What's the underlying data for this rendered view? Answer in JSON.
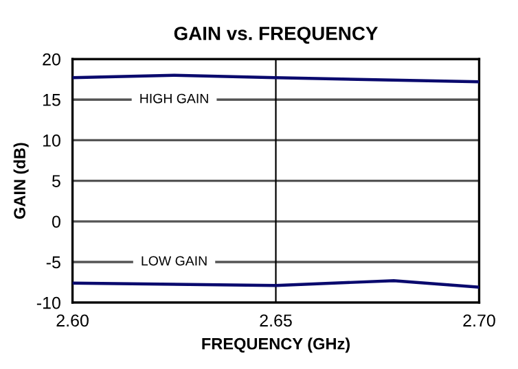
{
  "chart_data": {
    "type": "line",
    "title": "GAIN vs. FREQUENCY",
    "xlabel": "FREQUENCY (GHz)",
    "ylabel": "GAIN (dB)",
    "series": [
      {
        "color": "#0a0a6e",
        "x": [
          2.6,
          2.625,
          2.65,
          2.7
        ],
        "values": [
          17.7,
          18.0,
          17.7,
          17.2
        ]
      },
      {
        "color": "#0a0a6e",
        "x": [
          2.6,
          2.65,
          2.679,
          2.7
        ],
        "values": [
          -7.6,
          -7.9,
          -7.3,
          -8.1
        ]
      }
    ],
    "xlim": [
      2.6,
      2.7
    ],
    "xticks": [
      {
        "value": 2.6,
        "label": "2.60"
      },
      {
        "value": 2.65,
        "label": "2.65"
      },
      {
        "value": 2.7,
        "label": "2.70"
      }
    ],
    "ylim": [
      -10,
      20
    ],
    "yticks": [
      -10,
      -5,
      0,
      5,
      10,
      15,
      20
    ],
    "grid": "y",
    "ref_lines": [
      {
        "axis": "x",
        "value": 2.65,
        "color": "#000000"
      }
    ],
    "marker": "none",
    "line_style": "solid",
    "annotations": [
      "HIGH GAIN",
      "LOW GAIN"
    ]
  }
}
